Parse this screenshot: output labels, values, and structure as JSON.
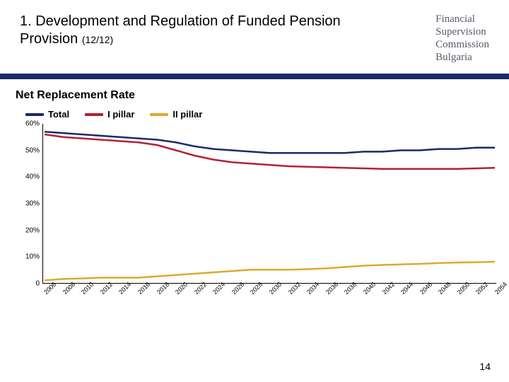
{
  "header": {
    "title_main": "1. Development and Regulation of Funded Pension Provision",
    "title_sub": "(12/12)",
    "org_line1": "Financial",
    "org_line2": "Supervision",
    "org_line3": "Commission",
    "org_line4": "Bulgaria"
  },
  "section_title": "Net Replacement Rate",
  "legend": {
    "total": {
      "label": "Total",
      "color": "#1a2a6c"
    },
    "pillar1": {
      "label": "I pillar",
      "color": "#b22234"
    },
    "pillar2": {
      "label": "II pillar",
      "color": "#e0a830"
    }
  },
  "chart": {
    "type": "line",
    "background_color": "#ffffff",
    "line_width": 2.5,
    "y": {
      "min": 0,
      "max": 60,
      "ticks": [
        0,
        10,
        20,
        30,
        40,
        50,
        60
      ],
      "tick_labels": [
        "0",
        "10%",
        "20%",
        "30%",
        "40%",
        "50%",
        "60%"
      ],
      "label_fontsize": 10
    },
    "x": {
      "labels": [
        "2006",
        "2008",
        "2010",
        "2012",
        "2014",
        "2016",
        "2018",
        "2020",
        "2022",
        "2024",
        "2026",
        "2028",
        "2030",
        "2032",
        "2034",
        "2036",
        "2038",
        "2040",
        "2042",
        "2044",
        "2046",
        "2048",
        "2050",
        "2052",
        "2054"
      ],
      "label_fontsize": 9,
      "label_rotation": -45
    },
    "series": {
      "total": {
        "color": "#1a2a6c",
        "values": [
          57,
          56.5,
          56,
          55.5,
          55,
          54.5,
          54,
          53,
          51.5,
          50.5,
          50,
          49.5,
          49,
          49,
          49,
          49,
          49,
          49.5,
          49.5,
          50,
          50,
          50.5,
          50.5,
          51,
          51
        ]
      },
      "pillar1": {
        "color": "#b22234",
        "values": [
          56,
          55,
          54.5,
          54,
          53.5,
          53,
          52,
          50,
          48,
          46.5,
          45.5,
          45,
          44.5,
          44,
          43.8,
          43.6,
          43.4,
          43.2,
          43,
          43,
          43,
          43,
          43,
          43.2,
          43.4
        ]
      },
      "pillar2": {
        "color": "#e0a830",
        "values": [
          1,
          1.5,
          1.7,
          2,
          2,
          2,
          2.5,
          3,
          3.5,
          4,
          4.5,
          5,
          5,
          5,
          5.2,
          5.5,
          6,
          6.5,
          6.8,
          7,
          7.2,
          7.5,
          7.7,
          7.8,
          8
        ]
      }
    }
  },
  "page_number": "14",
  "hr_color": "#1a2a6c"
}
